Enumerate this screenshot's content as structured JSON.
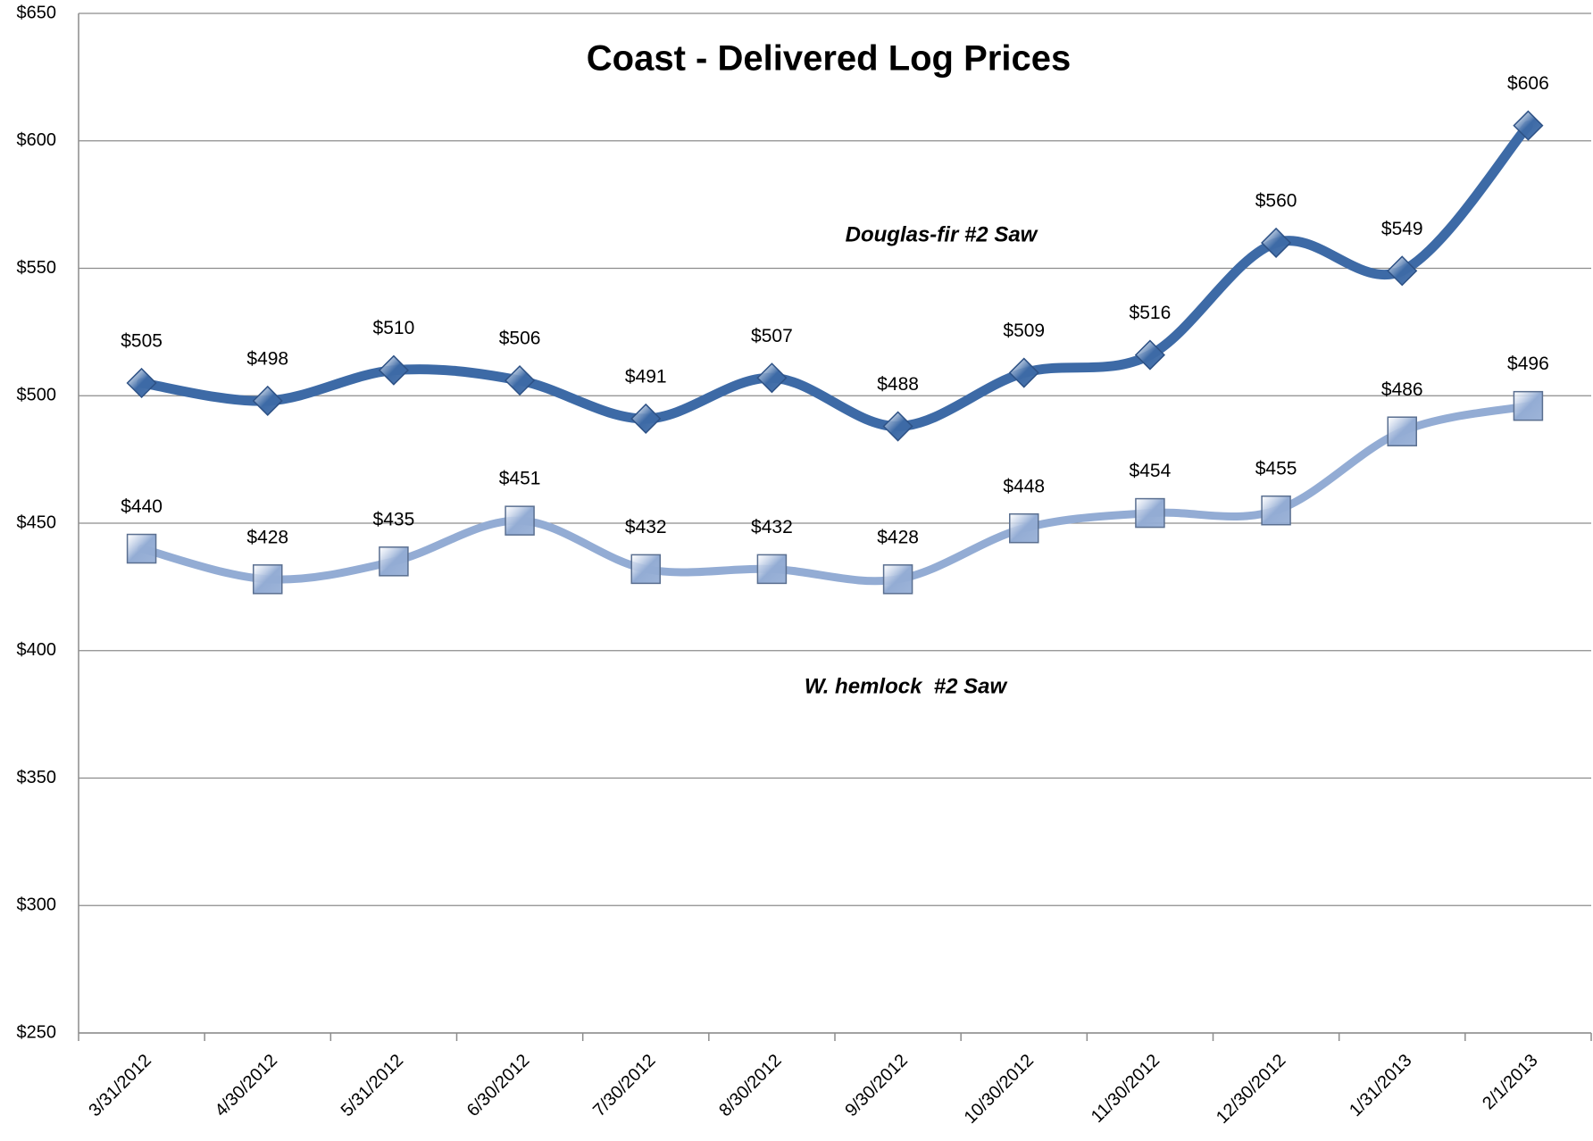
{
  "chart_data": {
    "type": "line",
    "title": "Coast - Delivered Log Prices",
    "categories": [
      "3/31/2012",
      "4/30/2012",
      "5/31/2012",
      "6/30/2012",
      "7/30/2012",
      "8/30/2012",
      "9/30/2012",
      "10/30/2012",
      "11/30/2012",
      "12/30/2012",
      "1/31/2013",
      "2/1/2013"
    ],
    "series": [
      {
        "name": "Douglas-fir #2 Saw",
        "color": "#3d6aa6",
        "marker": "diamond",
        "values": [
          505,
          498,
          510,
          506,
          491,
          507,
          488,
          509,
          516,
          560,
          549,
          606
        ],
        "value_labels": [
          "$505",
          "$498",
          "$510",
          "$506",
          "$491",
          "$507",
          "$488",
          "$509",
          "$516",
          "$560",
          "$549",
          "$606"
        ]
      },
      {
        "name": "W. hemlock  #2 Saw",
        "color": "#93acd4",
        "marker": "square",
        "values": [
          440,
          428,
          435,
          451,
          432,
          432,
          428,
          448,
          454,
          455,
          486,
          496
        ],
        "value_labels": [
          "$440",
          "$428",
          "$435",
          "$451",
          "$432",
          "$432",
          "$428",
          "$448",
          "$454",
          "$455",
          "$486",
          "$496"
        ]
      }
    ],
    "ylim": [
      250,
      650
    ],
    "yticks": [
      {
        "value": 250,
        "label": "$250"
      },
      {
        "value": 300,
        "label": "$300"
      },
      {
        "value": 350,
        "label": "$350"
      },
      {
        "value": 400,
        "label": "$400"
      },
      {
        "value": 450,
        "label": "$450"
      },
      {
        "value": 500,
        "label": "$500"
      },
      {
        "value": 550,
        "label": "$550"
      },
      {
        "value": 600,
        "label": "$600"
      },
      {
        "value": 650,
        "label": "$650"
      }
    ],
    "grid": true
  }
}
